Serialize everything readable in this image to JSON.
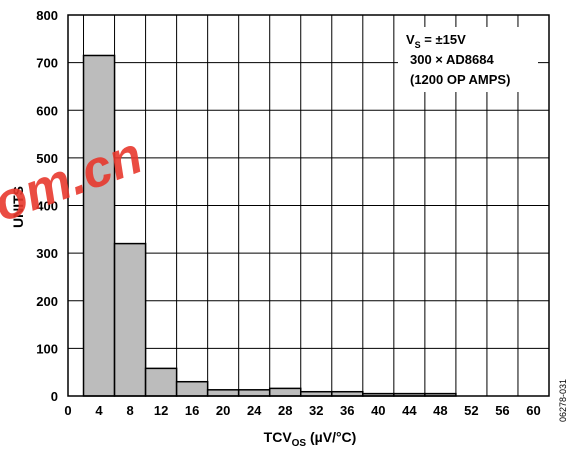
{
  "chart_data": {
    "type": "bar",
    "xlabel_main": "TCV",
    "xlabel_sub": "OS",
    "xlabel_unit": " (µV/°C)",
    "ylabel": "UNITS",
    "ylim": [
      0,
      800
    ],
    "xlim": [
      0,
      62
    ],
    "grid": true,
    "yticks": [
      "0",
      "100",
      "200",
      "300",
      "400",
      "500",
      "600",
      "700",
      "800"
    ],
    "xticks": [
      "0",
      "4",
      "8",
      "12",
      "16",
      "20",
      "24",
      "28",
      "32",
      "36",
      "40",
      "44",
      "48",
      "52",
      "56",
      "60"
    ],
    "bins": [
      {
        "from": 2,
        "to": 6,
        "value": 715
      },
      {
        "from": 6,
        "to": 10,
        "value": 320
      },
      {
        "from": 10,
        "to": 14,
        "value": 58
      },
      {
        "from": 14,
        "to": 18,
        "value": 30
      },
      {
        "from": 18,
        "to": 22,
        "value": 13
      },
      {
        "from": 22,
        "to": 26,
        "value": 13
      },
      {
        "from": 26,
        "to": 30,
        "value": 16
      },
      {
        "from": 30,
        "to": 34,
        "value": 9
      },
      {
        "from": 34,
        "to": 38,
        "value": 9
      },
      {
        "from": 38,
        "to": 42,
        "value": 5
      },
      {
        "from": 42,
        "to": 46,
        "value": 5
      },
      {
        "from": 46,
        "to": 50,
        "value": 5
      }
    ],
    "bar_color": "#bcbcbc",
    "annotation": {
      "vs_main": "V",
      "vs_sub": "S",
      "vs_value": " = ±15V",
      "line2": "300 × AD8684",
      "line3": "(1200 OP AMPS)"
    },
    "side_code": "06278-031"
  },
  "watermark": {
    "text": "om.cn",
    "color": "#e8392e"
  }
}
